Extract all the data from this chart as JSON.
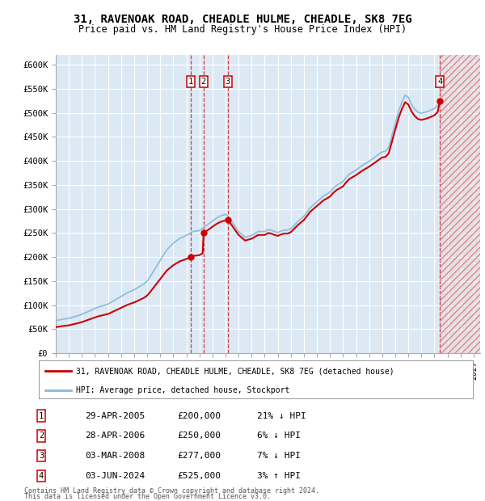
{
  "title": "31, RAVENOAK ROAD, CHEADLE HULME, CHEADLE, SK8 7EG",
  "subtitle": "Price paid vs. HM Land Registry's House Price Index (HPI)",
  "background_color": "#dce9f5",
  "plot_bg_color": "#dce9f5",
  "hpi_color": "#89b8d8",
  "price_color": "#cc0000",
  "ylim": [
    0,
    620000
  ],
  "yticks": [
    0,
    50000,
    100000,
    150000,
    200000,
    250000,
    300000,
    350000,
    400000,
    450000,
    500000,
    550000,
    600000
  ],
  "ytick_labels": [
    "£0",
    "£50K",
    "£100K",
    "£150K",
    "£200K",
    "£250K",
    "£300K",
    "£350K",
    "£400K",
    "£450K",
    "£500K",
    "£550K",
    "£600K"
  ],
  "xstart": 1995,
  "xend": 2027.5,
  "xticks": [
    1995,
    1996,
    1997,
    1998,
    1999,
    2000,
    2001,
    2002,
    2003,
    2004,
    2005,
    2006,
    2007,
    2008,
    2009,
    2010,
    2011,
    2012,
    2013,
    2014,
    2015,
    2016,
    2017,
    2018,
    2019,
    2020,
    2021,
    2022,
    2023,
    2024,
    2025,
    2026,
    2027
  ],
  "sales": [
    {
      "label": "1",
      "date": 2005.32,
      "price": 200000,
      "date_str": "29-APR-2005",
      "hpi_pct": "21% ↓ HPI"
    },
    {
      "label": "2",
      "date": 2006.32,
      "price": 250000,
      "date_str": "28-APR-2006",
      "hpi_pct": "6% ↓ HPI"
    },
    {
      "label": "3",
      "date": 2008.17,
      "price": 277000,
      "date_str": "03-MAR-2008",
      "hpi_pct": "7% ↓ HPI"
    },
    {
      "label": "4",
      "date": 2024.42,
      "price": 525000,
      "date_str": "03-JUN-2024",
      "hpi_pct": "3% ↑ HPI"
    }
  ],
  "legend_house_label": "31, RAVENOAK ROAD, CHEADLE HULME, CHEADLE, SK8 7EG (detached house)",
  "legend_hpi_label": "HPI: Average price, detached house, Stockport",
  "footer1": "Contains HM Land Registry data © Crown copyright and database right 2024.",
  "footer2": "This data is licensed under the Open Government Licence v3.0.",
  "hpi_data_years": [
    1995.0,
    1995.25,
    1995.5,
    1995.75,
    1996.0,
    1996.25,
    1996.5,
    1996.75,
    1997.0,
    1997.25,
    1997.5,
    1997.75,
    1998.0,
    1998.25,
    1998.5,
    1998.75,
    1999.0,
    1999.25,
    1999.5,
    1999.75,
    2000.0,
    2000.25,
    2000.5,
    2000.75,
    2001.0,
    2001.25,
    2001.5,
    2001.75,
    2002.0,
    2002.25,
    2002.5,
    2002.75,
    2003.0,
    2003.25,
    2003.5,
    2003.75,
    2004.0,
    2004.25,
    2004.5,
    2004.75,
    2005.0,
    2005.25,
    2005.5,
    2005.75,
    2006.0,
    2006.25,
    2006.5,
    2006.75,
    2007.0,
    2007.25,
    2007.5,
    2007.75,
    2008.0,
    2008.25,
    2008.5,
    2008.75,
    2009.0,
    2009.25,
    2009.5,
    2009.75,
    2010.0,
    2010.25,
    2010.5,
    2010.75,
    2011.0,
    2011.25,
    2011.5,
    2011.75,
    2012.0,
    2012.25,
    2012.5,
    2012.75,
    2013.0,
    2013.25,
    2013.5,
    2013.75,
    2014.0,
    2014.25,
    2014.5,
    2014.75,
    2015.0,
    2015.25,
    2015.5,
    2015.75,
    2016.0,
    2016.25,
    2016.5,
    2016.75,
    2017.0,
    2017.25,
    2017.5,
    2017.75,
    2018.0,
    2018.25,
    2018.5,
    2018.75,
    2019.0,
    2019.25,
    2019.5,
    2019.75,
    2020.0,
    2020.25,
    2020.5,
    2020.75,
    2021.0,
    2021.25,
    2021.5,
    2021.75,
    2022.0,
    2022.25,
    2022.5,
    2022.75,
    2023.0,
    2023.25,
    2023.5,
    2023.75,
    2024.0,
    2024.25,
    2024.5
  ],
  "hpi_data_values": [
    68000,
    69000,
    70500,
    71500,
    72500,
    74500,
    76500,
    78500,
    81000,
    84000,
    87000,
    90000,
    93000,
    96000,
    98000,
    100000,
    102000,
    106000,
    110000,
    114000,
    118000,
    122000,
    126000,
    129000,
    132000,
    136000,
    140000,
    144000,
    150000,
    160000,
    171000,
    182000,
    193000,
    204000,
    215000,
    222000,
    229000,
    234000,
    239000,
    242000,
    245000,
    249000,
    253000,
    254000,
    255000,
    260000,
    265000,
    270000,
    275000,
    280000,
    284000,
    287000,
    289000,
    283000,
    273000,
    263000,
    253000,
    247000,
    241000,
    243000,
    245000,
    249000,
    253000,
    253000,
    253000,
    257000,
    256000,
    253000,
    251000,
    254000,
    256000,
    256000,
    259000,
    266000,
    273000,
    279000,
    285000,
    294000,
    303000,
    309000,
    315000,
    321000,
    327000,
    331000,
    335000,
    343000,
    349000,
    353000,
    357000,
    366000,
    373000,
    377000,
    381000,
    386000,
    391000,
    395000,
    399000,
    404000,
    409000,
    414000,
    419000,
    420000,
    428000,
    453000,
    478000,
    503000,
    522000,
    537000,
    532000,
    517000,
    507000,
    501000,
    499000,
    501000,
    503000,
    506000,
    509000,
    516000,
    521000
  ]
}
